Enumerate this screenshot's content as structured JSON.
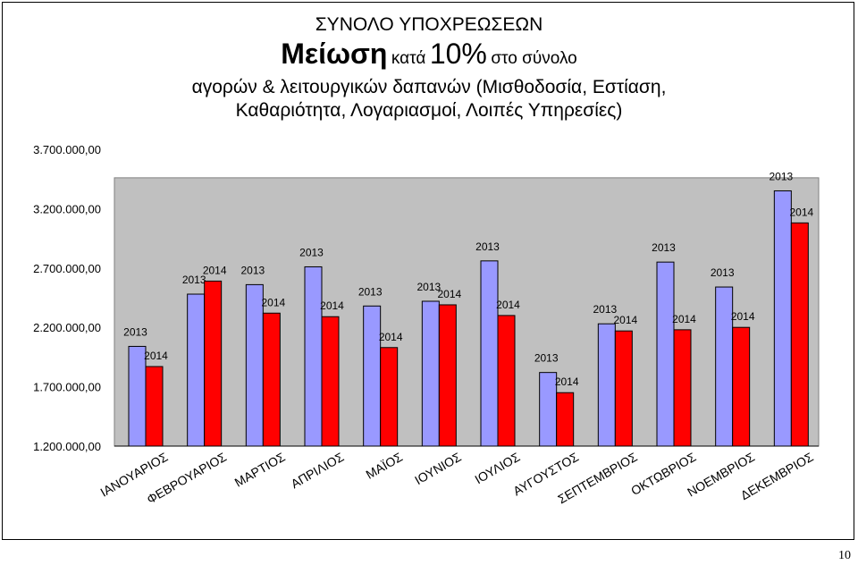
{
  "title": {
    "line1": "ΣΥΝΟΛΟ ΥΠΟΧΡΕΩΣΕΩΝ",
    "line2_big": "Μείωση",
    "line2_small1": "κατά",
    "line2_pct": "10%",
    "line2_small2": "στο σύνολο",
    "line3": "αγορών & λειτουργικών δαπανών (Μισθοδοσία, Εστίαση,",
    "line4": "Καθαριότητα, Λογαριασμοί, Λοιπές Υπηρεσίες)"
  },
  "page_number": "10",
  "chart_data": {
    "type": "bar",
    "categories": [
      "ΙΑΝΟΥΑΡΙΟΣ",
      "ΦΕΒΡΟΥΑΡΙΟΣ",
      "ΜΑΡΤΙΟΣ",
      "ΑΠΡΙΛΙΟΣ",
      "ΜΑΪΟΣ",
      "ΙΟΥΝΙΟΣ",
      "ΙΟΥΛΙΟΣ",
      "ΑΥΓΟΥΣΤΟΣ",
      "ΣΕΠΤΕΜΒΡΙΟΣ",
      "ΟΚΤΩΒΡΙΟΣ",
      "ΝΟΕΜΒΡΙΟΣ",
      "ΔΕΚΕΜΒΡΙΟΣ"
    ],
    "series": [
      {
        "name": "2013",
        "color": "#9999ff",
        "values": [
          2040000,
          2480000,
          2560000,
          2710000,
          2380000,
          2420000,
          2760000,
          1820000,
          2230000,
          2750000,
          2540000,
          3350000
        ]
      },
      {
        "name": "2014",
        "color": "#ff0000",
        "values": [
          1870000,
          2590000,
          2320000,
          2290000,
          2030000,
          2390000,
          2300000,
          1650000,
          2170000,
          2180000,
          2200000,
          3080000
        ]
      }
    ],
    "yticks": [
      "1.200.000,00",
      "1.700.000,00",
      "2.200.000,00",
      "2.700.000,00",
      "3.200.000,00",
      "3.700.000,00"
    ],
    "ytick_values": [
      1200000,
      1700000,
      2200000,
      2700000,
      3200000,
      3700000
    ],
    "ylim": [
      1200000,
      3700000
    ],
    "plot_ymax": 3460000,
    "grid": false,
    "legend": "none",
    "plot_background": "#c0c0c0"
  }
}
